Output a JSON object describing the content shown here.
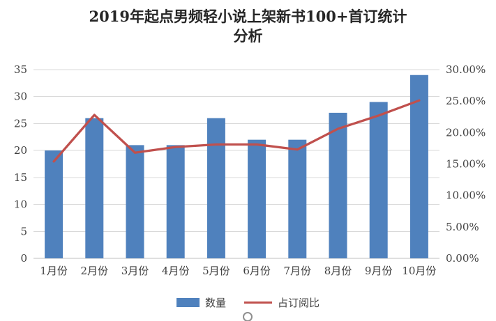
{
  "chart_data": {
    "type": "bar+line",
    "title": "2019年起点男频轻小说上架新书100+首订统计分析",
    "title_lines": [
      "2019年起点男频轻小说上架新书100+首订统计",
      "分析"
    ],
    "categories": [
      "1月份",
      "2月份",
      "3月份",
      "4月份",
      "5月份",
      "6月份",
      "7月份",
      "8月份",
      "9月份",
      "10月份"
    ],
    "series": [
      {
        "name": "数量",
        "type": "bar",
        "axis": "left",
        "color": "#4F81BD",
        "values": [
          20,
          26,
          21,
          21,
          26,
          22,
          22,
          27,
          29,
          34
        ]
      },
      {
        "name": "占订阅比",
        "type": "line",
        "axis": "right",
        "color": "#C0504D",
        "values_percent": [
          15.4,
          22.8,
          16.8,
          17.7,
          18.1,
          18.1,
          17.3,
          20.6,
          22.7,
          25.1
        ]
      }
    ],
    "left_axis": {
      "min": 0,
      "max": 35,
      "step": 5,
      "tick_labels": [
        "0",
        "5",
        "10",
        "15",
        "20",
        "25",
        "30",
        "35"
      ]
    },
    "right_axis": {
      "min": 0,
      "max": 30,
      "step": 5,
      "tick_labels": [
        "0.00%",
        "5.00%",
        "10.00%",
        "15.00%",
        "20.00%",
        "25.00%",
        "30.00%"
      ]
    },
    "grid": true,
    "legend_position": "bottom",
    "colors": {
      "grid": "#D9D9D9",
      "axis_line": "#BFBFBF",
      "axis_text": "#3F3F3F",
      "background": "#FFFFFF"
    }
  }
}
